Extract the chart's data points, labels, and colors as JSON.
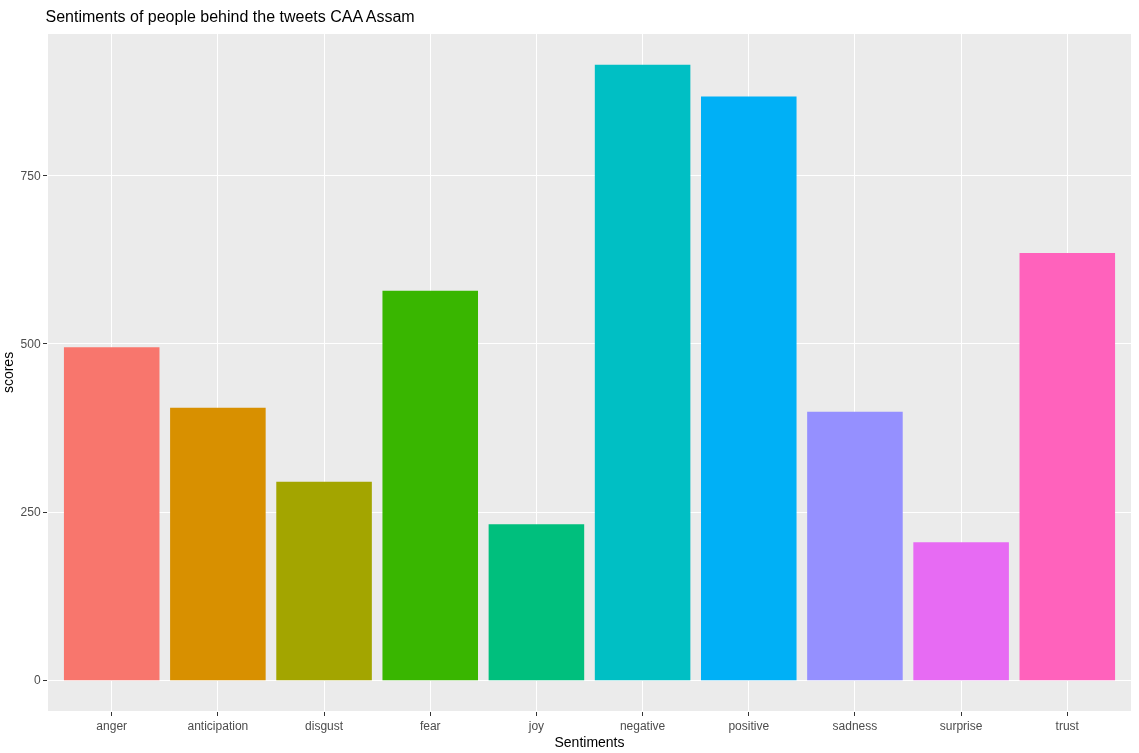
{
  "chart_data": {
    "type": "bar",
    "title": "Sentiments of people behind the tweets CAA Assam",
    "xlabel": "Sentiments",
    "ylabel": "scores",
    "categories": [
      "anger",
      "anticipation",
      "disgust",
      "fear",
      "joy",
      "negative",
      "positive",
      "sadness",
      "surprise",
      "trust"
    ],
    "values": [
      495,
      405,
      295,
      579,
      232,
      915,
      868,
      399,
      205,
      635
    ],
    "colors": [
      "#f8766d",
      "#d89000",
      "#a3a500",
      "#39b600",
      "#00bf7d",
      "#00bfc4",
      "#00b0f6",
      "#9590ff",
      "#e76bf3",
      "#ff62bc"
    ],
    "ylim": [
      -45.75,
      960.75
    ],
    "yticks": [
      0,
      250,
      500,
      750
    ],
    "grid": true
  }
}
